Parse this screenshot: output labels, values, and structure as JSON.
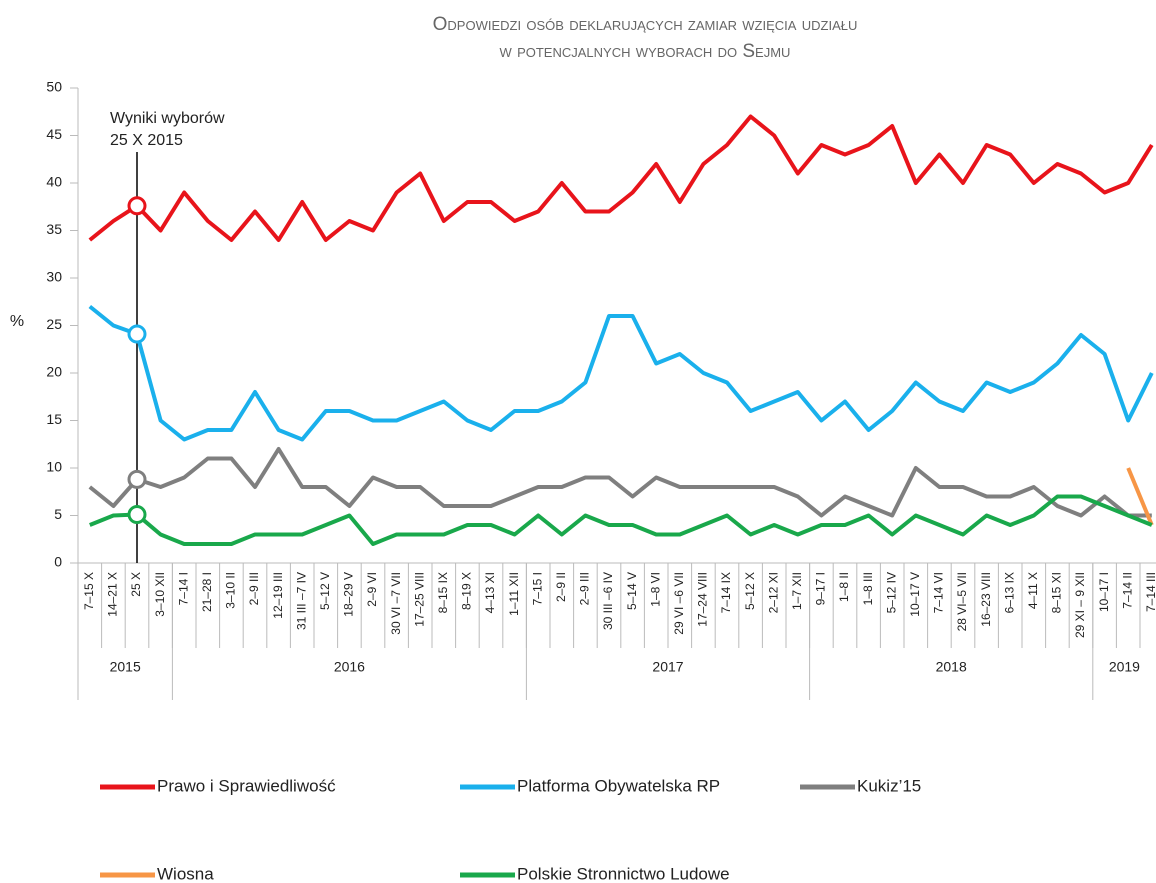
{
  "chart_data": {
    "type": "line",
    "title": [
      "Odpowiedzi osób deklarujących zamiar wzięcia udziału",
      "w potencjalnych wyborach do Sejmu"
    ],
    "ylabel": "%",
    "groups": [
      {
        "label": "2015",
        "categories": [
          "7–15 X",
          "14–21 X",
          "25 X",
          "3–10 XII"
        ]
      },
      {
        "label": "2016",
        "categories": [
          "7–14 I",
          "21–28 I",
          "3–10 II",
          "2–9 III",
          "12–19 III",
          "31 III –7 IV",
          "5–12 V",
          "18–29 V",
          "2–9 VI",
          "30 VI –7 VII",
          "17–25 VIII",
          "8–15 IX",
          "8–19 X",
          "4–13 XI",
          "1–11 XII"
        ]
      },
      {
        "label": "2017",
        "categories": [
          "7–15 I",
          "2–9 II",
          "2–9 III",
          "30 III –6 IV",
          "5–14 V",
          "1–8 VI",
          "29 VI –6 VII",
          "17–24 VIII",
          "7–14 IX",
          "5–12 X",
          "2–12 XI",
          "1–7 XII"
        ]
      },
      {
        "label": "2018",
        "categories": [
          "9–17 I",
          "1–8 II",
          "1–8 III",
          "5–12 IV",
          "10–17 V",
          "7–14 VI",
          "28 VI–5 VII",
          "16–23 VIII",
          "6–13 IX",
          "4–11 X",
          "8–15 XI",
          "29 XI – 9 XII"
        ]
      },
      {
        "label": "2019",
        "categories": [
          "10–17 I",
          "7–14 II",
          "7–14 III"
        ]
      }
    ],
    "series": [
      {
        "name": "Prawo i Sprawiedliwość",
        "color": "#e8141b",
        "values": [
          34,
          36,
          37.6,
          35,
          39,
          36,
          34,
          37,
          34,
          38,
          34,
          36,
          35,
          39,
          41,
          36,
          38,
          38,
          36,
          37,
          40,
          37,
          37,
          39,
          42,
          38,
          42,
          44,
          47,
          45,
          41,
          44,
          43,
          44,
          46,
          40,
          43,
          40,
          44,
          43,
          40,
          42,
          41,
          39,
          40,
          44
        ]
      },
      {
        "name": "Platforma Obywatelska RP",
        "color": "#1ab0ec",
        "values": [
          27,
          25,
          24.1,
          15,
          13,
          14,
          14,
          18,
          14,
          13,
          16,
          16,
          15,
          15,
          16,
          17,
          15,
          14,
          16,
          16,
          17,
          19,
          26,
          26,
          21,
          22,
          20,
          19,
          16,
          17,
          18,
          15,
          17,
          14,
          16,
          19,
          17,
          16,
          19,
          18,
          19,
          21,
          24,
          22,
          15,
          20
        ]
      },
      {
        "name": "Kukiz’15",
        "color": "#7f7f7f",
        "values": [
          8,
          6,
          8.8,
          8,
          9,
          11,
          11,
          8,
          12,
          8,
          8,
          6,
          9,
          8,
          8,
          6,
          6,
          6,
          7,
          8,
          8,
          9,
          9,
          7,
          9,
          8,
          8,
          8,
          8,
          8,
          7,
          5,
          7,
          6,
          5,
          10,
          8,
          8,
          7,
          7,
          8,
          6,
          5,
          7,
          5,
          5
        ]
      },
      {
        "name": "Wiosna",
        "color": "#f79646",
        "values": [
          null,
          null,
          null,
          null,
          null,
          null,
          null,
          null,
          null,
          null,
          null,
          null,
          null,
          null,
          null,
          null,
          null,
          null,
          null,
          null,
          null,
          null,
          null,
          null,
          null,
          null,
          null,
          null,
          null,
          null,
          null,
          null,
          null,
          null,
          null,
          null,
          null,
          null,
          null,
          null,
          null,
          null,
          null,
          null,
          10,
          4
        ]
      },
      {
        "name": "Polskie Stronnictwo Ludowe",
        "color": "#19a84b",
        "values": [
          4,
          5,
          5.1,
          3,
          2,
          2,
          2,
          3,
          3,
          3,
          4,
          5,
          2,
          3,
          3,
          3,
          4,
          4,
          3,
          5,
          3,
          5,
          4,
          4,
          3,
          3,
          4,
          5,
          3,
          4,
          3,
          4,
          4,
          5,
          3,
          5,
          4,
          3,
          5,
          4,
          5,
          7,
          7,
          6,
          5,
          4
        ]
      }
    ],
    "annotation": {
      "lines": [
        "Wyniki wyborów",
        "25 X 2015"
      ],
      "category": "25 X"
    },
    "ylim": [
      0,
      50
    ],
    "yticks": [
      0,
      5,
      10,
      15,
      20,
      25,
      30,
      35,
      40,
      45,
      50
    ],
    "grid": false
  }
}
